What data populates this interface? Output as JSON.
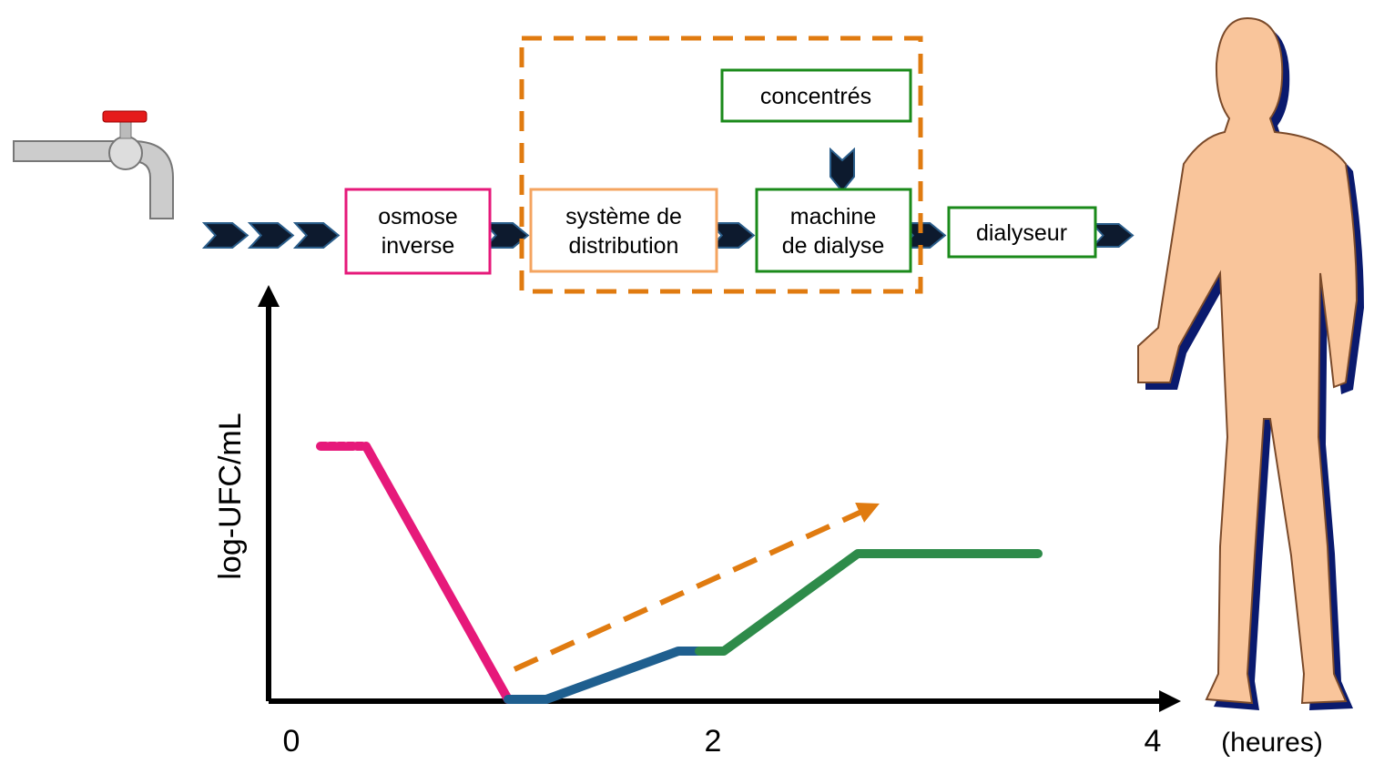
{
  "nodes": [
    {
      "label": [
        "osmose",
        "inverse"
      ]
    },
    {
      "label": [
        "système de",
        "distribution"
      ]
    },
    {
      "label": [
        "machine",
        "de dialyse"
      ]
    },
    {
      "label": [
        "concentrés"
      ]
    },
    {
      "label": [
        "dialyseur"
      ]
    }
  ],
  "graph": {
    "y_label": "log-UFC/mL",
    "x_ticks": [
      0,
      2,
      4
    ],
    "x_unit": "(heures)"
  }
}
